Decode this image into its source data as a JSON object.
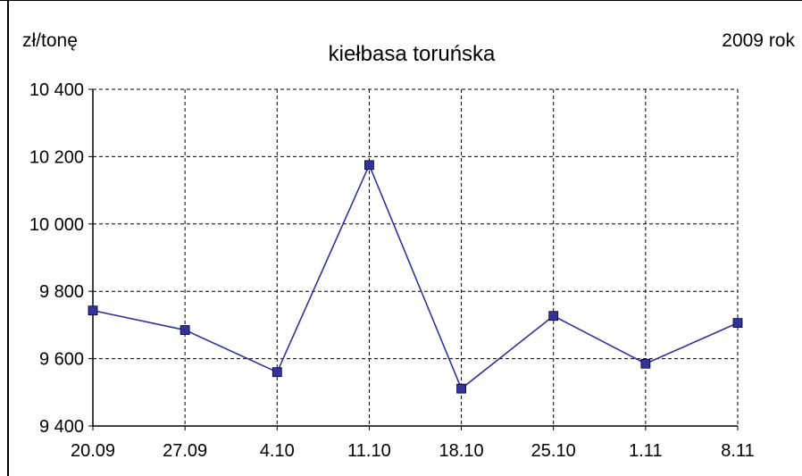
{
  "chart_data": {
    "type": "line",
    "title": "kiełbasa toruńska",
    "ylabel": "zł/tonę",
    "corner_label": "2009 rok",
    "categories": [
      "20.09",
      "27.09",
      "4.10",
      "11.10",
      "18.10",
      "25.10",
      "1.11",
      "8.11"
    ],
    "series": [
      {
        "values": [
          9743,
          9685,
          9560,
          10175,
          9511,
          9727,
          9585,
          9706
        ],
        "color": "#333399"
      }
    ],
    "ylim": [
      9400,
      10400
    ],
    "yticks": [
      9400,
      9600,
      9800,
      10000,
      10200,
      10400
    ],
    "ytick_labels": [
      "9 400",
      "9 600",
      "9 800",
      "10 000",
      "10 200",
      "10 400"
    ],
    "grid": true,
    "grid_style": "dashed",
    "legend": "none"
  }
}
